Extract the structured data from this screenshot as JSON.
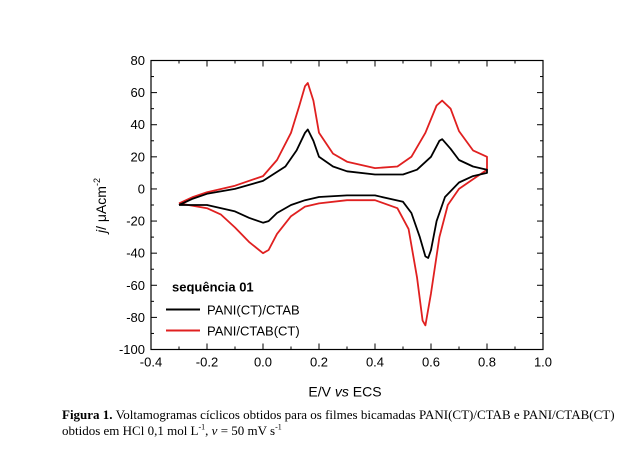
{
  "chart_data": {
    "type": "line",
    "xlabel_main": "E/V",
    "xlabel_italic": "vs",
    "xlabel_end": "ECS",
    "ylabel_italic": "j",
    "ylabel_main": "/ μAcm",
    "ylabel_sup": "-2",
    "xlim": [
      -0.4,
      1.0
    ],
    "ylim": [
      -100,
      80
    ],
    "xticks": [
      "-0.4",
      "-0.2",
      "0.0",
      "0.2",
      "0.4",
      "0.6",
      "0.8",
      "1.0"
    ],
    "yticks": [
      "80",
      "60",
      "40",
      "20",
      "0",
      "-20",
      "-40",
      "-60",
      "-80",
      "-100"
    ],
    "grid": false,
    "legend": {
      "title": "sequência 01",
      "position": "bottom-left",
      "entries": [
        {
          "name": "PANI(CT)/CTAB",
          "color": "#000000"
        },
        {
          "name": "PANI/CTAB(CT)",
          "color": "#e02020"
        }
      ]
    },
    "series": [
      {
        "name": "PANI(CT)/CTAB",
        "color": "#000000",
        "points": [
          [
            -0.3,
            -10
          ],
          [
            -0.25,
            -6
          ],
          [
            -0.2,
            -3
          ],
          [
            -0.1,
            0
          ],
          [
            0.0,
            5
          ],
          [
            0.08,
            14
          ],
          [
            0.12,
            24
          ],
          [
            0.15,
            35
          ],
          [
            0.16,
            37
          ],
          [
            0.18,
            30
          ],
          [
            0.2,
            20
          ],
          [
            0.25,
            14
          ],
          [
            0.3,
            11
          ],
          [
            0.4,
            9
          ],
          [
            0.5,
            9
          ],
          [
            0.55,
            12
          ],
          [
            0.6,
            20
          ],
          [
            0.63,
            30
          ],
          [
            0.64,
            31
          ],
          [
            0.67,
            25
          ],
          [
            0.7,
            18
          ],
          [
            0.75,
            14
          ],
          [
            0.8,
            12
          ],
          [
            0.8,
            10
          ],
          [
            0.75,
            8
          ],
          [
            0.7,
            4
          ],
          [
            0.65,
            -5
          ],
          [
            0.62,
            -20
          ],
          [
            0.6,
            -38
          ],
          [
            0.59,
            -43
          ],
          [
            0.58,
            -42
          ],
          [
            0.56,
            -30
          ],
          [
            0.53,
            -15
          ],
          [
            0.5,
            -8
          ],
          [
            0.4,
            -4
          ],
          [
            0.3,
            -4
          ],
          [
            0.2,
            -5
          ],
          [
            0.15,
            -7
          ],
          [
            0.1,
            -10
          ],
          [
            0.05,
            -15
          ],
          [
            0.02,
            -20
          ],
          [
            0.0,
            -21
          ],
          [
            -0.05,
            -18
          ],
          [
            -0.1,
            -14
          ],
          [
            -0.2,
            -10
          ],
          [
            -0.3,
            -10
          ]
        ]
      },
      {
        "name": "PANI/CTAB(CT)",
        "color": "#e02020",
        "points": [
          [
            -0.3,
            -9
          ],
          [
            -0.25,
            -5
          ],
          [
            -0.2,
            -2
          ],
          [
            -0.1,
            2
          ],
          [
            0.0,
            8
          ],
          [
            0.05,
            18
          ],
          [
            0.1,
            35
          ],
          [
            0.13,
            52
          ],
          [
            0.15,
            64
          ],
          [
            0.16,
            66
          ],
          [
            0.18,
            55
          ],
          [
            0.2,
            35
          ],
          [
            0.25,
            22
          ],
          [
            0.3,
            17
          ],
          [
            0.4,
            13
          ],
          [
            0.48,
            14
          ],
          [
            0.53,
            20
          ],
          [
            0.58,
            35
          ],
          [
            0.62,
            52
          ],
          [
            0.64,
            55
          ],
          [
            0.67,
            50
          ],
          [
            0.7,
            36
          ],
          [
            0.75,
            24
          ],
          [
            0.8,
            20
          ],
          [
            0.8,
            12
          ],
          [
            0.75,
            6
          ],
          [
            0.7,
            0
          ],
          [
            0.66,
            -10
          ],
          [
            0.63,
            -30
          ],
          [
            0.6,
            -65
          ],
          [
            0.58,
            -85
          ],
          [
            0.57,
            -82
          ],
          [
            0.55,
            -55
          ],
          [
            0.52,
            -25
          ],
          [
            0.48,
            -12
          ],
          [
            0.4,
            -7
          ],
          [
            0.3,
            -7
          ],
          [
            0.2,
            -9
          ],
          [
            0.15,
            -11
          ],
          [
            0.1,
            -17
          ],
          [
            0.05,
            -28
          ],
          [
            0.02,
            -38
          ],
          [
            0.0,
            -40
          ],
          [
            -0.05,
            -33
          ],
          [
            -0.1,
            -24
          ],
          [
            -0.15,
            -16
          ],
          [
            -0.2,
            -12
          ],
          [
            -0.3,
            -9
          ]
        ]
      }
    ]
  },
  "caption": {
    "label": "Figura 1.",
    "text_a": " Voltamogramas cíclicos obtidos para os filmes bicamadas PANI(CT)/CTAB e PANI/CTAB(CT) obtidos em HCl 0,1 mol L",
    "sup_a": "-1",
    "text_b": ", ",
    "italic_v": "v",
    "text_c": " = 50 mV s",
    "sup_b": "-1"
  }
}
